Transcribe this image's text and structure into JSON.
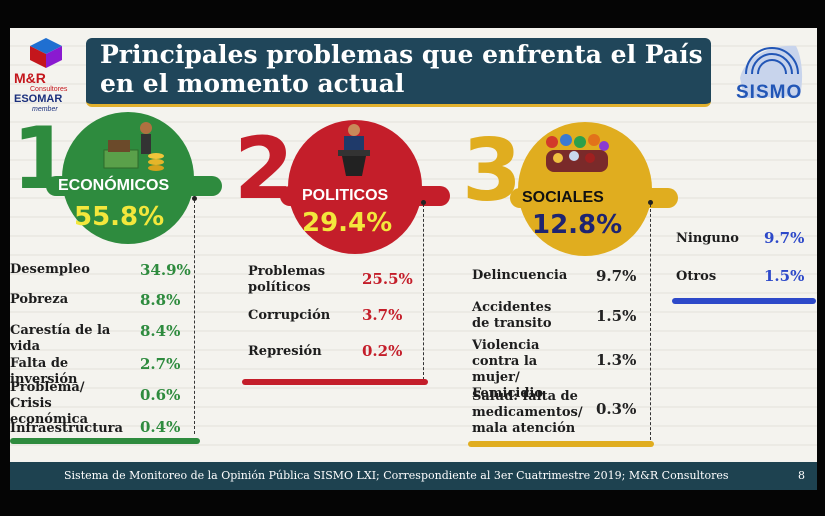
{
  "title": "Principales problemas que enfrenta el País en el momento actual",
  "logo_left": {
    "name": "M&R",
    "sub": "Consultores",
    "esomar": "ESOMAR",
    "member": "member"
  },
  "logo_right": {
    "name": "SISMO"
  },
  "categories": [
    {
      "number": "1",
      "label": "ECONÓMICOS",
      "percent": "55.8%",
      "items": [
        {
          "label": "Desempleo",
          "value": "34.9%"
        },
        {
          "label": "Pobreza",
          "value": "8.8%"
        },
        {
          "label": "Carestía de la vida",
          "value": "8.4%"
        },
        {
          "label": "Falta de inversión",
          "value": "2.7%"
        },
        {
          "label": "Problema/ Crisis económica",
          "value": "0.6%"
        },
        {
          "label": "Infraestructura",
          "value": "0.4%"
        }
      ]
    },
    {
      "number": "2",
      "label": "POLITICOS",
      "percent": "29.4%",
      "items": [
        {
          "label": "Problemas políticos",
          "value": "25.5%"
        },
        {
          "label": "Corrupción",
          "value": "3.7%"
        },
        {
          "label": "Represión",
          "value": "0.2%"
        }
      ]
    },
    {
      "number": "3",
      "label": "SOCIALES",
      "percent": "12.8%",
      "items": [
        {
          "label": "Delincuencia",
          "value": "9.7%"
        },
        {
          "label": "Accidentes de transito",
          "value": "1.5%"
        },
        {
          "label": "Violencia contra la mujer/ Femicidio",
          "value": "1.3%"
        },
        {
          "label": "Salud: falta de medicamentos/ mala atención",
          "value": "0.3%"
        }
      ]
    }
  ],
  "others": [
    {
      "label": "Ninguno",
      "value": "9.7%"
    },
    {
      "label": "Otros",
      "value": "1.5%"
    }
  ],
  "colors": {
    "green": "#2e8b3e",
    "red": "#c41e2a",
    "gold": "#e0ad1f",
    "blue": "#2d49c9",
    "navy": "#20465a"
  },
  "footer": {
    "text": "Sistema de Monitoreo de la Opinión Pública SISMO LXI; Correspondiente al 3er Cuatrimestre 2019; M&R Consultores",
    "page": "8"
  }
}
